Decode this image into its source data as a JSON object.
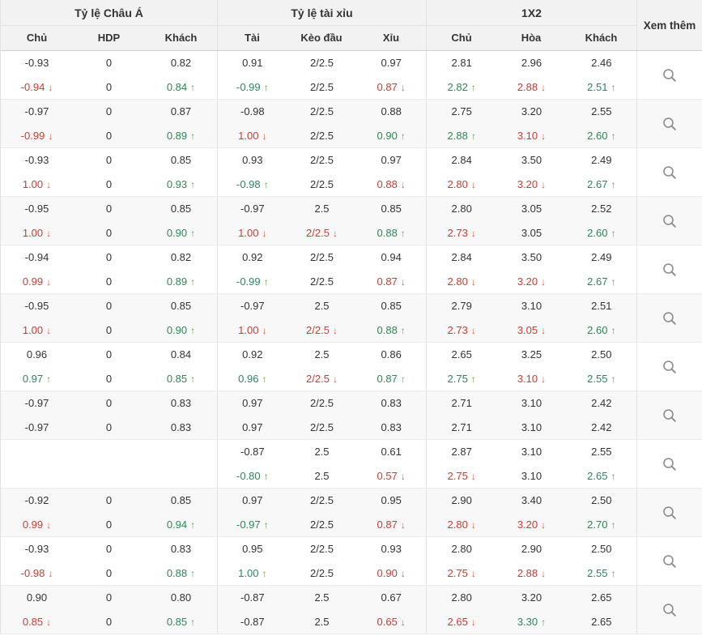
{
  "header": {
    "groups": [
      {
        "label": "Tỷ lệ Châu Á",
        "cols": [
          "Chủ",
          "HDP",
          "Khách"
        ]
      },
      {
        "label": "Tỷ lệ tài xỉu",
        "cols": [
          "Tài",
          "Kèo đầu",
          "Xỉu"
        ]
      },
      {
        "label": "1X2",
        "cols": [
          "Chủ",
          "Hòa",
          "Khách"
        ]
      }
    ],
    "more_label": "Xem thêm"
  },
  "icons": {
    "trend_up": "↑",
    "trend_down": "↓",
    "magnifier": "magnifier-icon"
  },
  "colors": {
    "up": "#2d8659",
    "down": "#cc3b33",
    "up_arrow": "#63a33c",
    "down_arrow": "#e2542c",
    "text": "#333333",
    "header_bg": "#f2f2f2",
    "shaded": "#f8f8f8",
    "border": "#e2e2e2",
    "row_border": "#ececec",
    "icon": "#8c8c8c"
  },
  "rows": [
    {
      "lines": [
        [
          {
            "v": "-0.93"
          },
          {
            "v": "0"
          },
          {
            "v": "0.82"
          },
          {
            "v": "0.91"
          },
          {
            "v": "2/2.5"
          },
          {
            "v": "0.97"
          },
          {
            "v": "2.81"
          },
          {
            "v": "2.96"
          },
          {
            "v": "2.46"
          }
        ],
        [
          {
            "v": "-0.94",
            "t": "down"
          },
          {
            "v": "0"
          },
          {
            "v": "0.84",
            "t": "up"
          },
          {
            "v": "-0.99",
            "t": "up"
          },
          {
            "v": "2/2.5"
          },
          {
            "v": "0.87",
            "t": "down"
          },
          {
            "v": "2.82",
            "t": "up"
          },
          {
            "v": "2.88",
            "t": "down"
          },
          {
            "v": "2.51",
            "t": "up"
          }
        ]
      ]
    },
    {
      "lines": [
        [
          {
            "v": "-0.97"
          },
          {
            "v": "0"
          },
          {
            "v": "0.87"
          },
          {
            "v": "-0.98"
          },
          {
            "v": "2/2.5"
          },
          {
            "v": "0.88"
          },
          {
            "v": "2.75"
          },
          {
            "v": "3.20"
          },
          {
            "v": "2.55"
          }
        ],
        [
          {
            "v": "-0.99",
            "t": "down"
          },
          {
            "v": "0"
          },
          {
            "v": "0.89",
            "t": "up"
          },
          {
            "v": "1.00",
            "t": "down"
          },
          {
            "v": "2/2.5"
          },
          {
            "v": "0.90",
            "t": "up"
          },
          {
            "v": "2.88",
            "t": "up"
          },
          {
            "v": "3.10",
            "t": "down"
          },
          {
            "v": "2.60",
            "t": "up"
          }
        ]
      ]
    },
    {
      "lines": [
        [
          {
            "v": "-0.93"
          },
          {
            "v": "0"
          },
          {
            "v": "0.85"
          },
          {
            "v": "0.93"
          },
          {
            "v": "2/2.5"
          },
          {
            "v": "0.97"
          },
          {
            "v": "2.84"
          },
          {
            "v": "3.50"
          },
          {
            "v": "2.49"
          }
        ],
        [
          {
            "v": "1.00",
            "t": "down"
          },
          {
            "v": "0"
          },
          {
            "v": "0.93",
            "t": "up"
          },
          {
            "v": "-0.98",
            "t": "up"
          },
          {
            "v": "2/2.5"
          },
          {
            "v": "0.88",
            "t": "down"
          },
          {
            "v": "2.80",
            "t": "down"
          },
          {
            "v": "3.20",
            "t": "down"
          },
          {
            "v": "2.67",
            "t": "up"
          }
        ]
      ]
    },
    {
      "lines": [
        [
          {
            "v": "-0.95"
          },
          {
            "v": "0"
          },
          {
            "v": "0.85"
          },
          {
            "v": "-0.97"
          },
          {
            "v": "2.5"
          },
          {
            "v": "0.85"
          },
          {
            "v": "2.80"
          },
          {
            "v": "3.05"
          },
          {
            "v": "2.52"
          }
        ],
        [
          {
            "v": "1.00",
            "t": "down"
          },
          {
            "v": "0"
          },
          {
            "v": "0.90",
            "t": "up"
          },
          {
            "v": "1.00",
            "t": "down"
          },
          {
            "v": "2/2.5",
            "t": "down"
          },
          {
            "v": "0.88",
            "t": "up"
          },
          {
            "v": "2.73",
            "t": "down"
          },
          {
            "v": "3.05"
          },
          {
            "v": "2.60",
            "t": "up"
          }
        ]
      ]
    },
    {
      "lines": [
        [
          {
            "v": "-0.94"
          },
          {
            "v": "0"
          },
          {
            "v": "0.82"
          },
          {
            "v": "0.92"
          },
          {
            "v": "2/2.5"
          },
          {
            "v": "0.94"
          },
          {
            "v": "2.84"
          },
          {
            "v": "3.50"
          },
          {
            "v": "2.49"
          }
        ],
        [
          {
            "v": "0.99",
            "t": "down"
          },
          {
            "v": "0"
          },
          {
            "v": "0.89",
            "t": "up"
          },
          {
            "v": "-0.99",
            "t": "up"
          },
          {
            "v": "2/2.5"
          },
          {
            "v": "0.87",
            "t": "down"
          },
          {
            "v": "2.80",
            "t": "down"
          },
          {
            "v": "3.20",
            "t": "down"
          },
          {
            "v": "2.67",
            "t": "up"
          }
        ]
      ]
    },
    {
      "lines": [
        [
          {
            "v": "-0.95"
          },
          {
            "v": "0"
          },
          {
            "v": "0.85"
          },
          {
            "v": "-0.97"
          },
          {
            "v": "2.5"
          },
          {
            "v": "0.85"
          },
          {
            "v": "2.79"
          },
          {
            "v": "3.10"
          },
          {
            "v": "2.51"
          }
        ],
        [
          {
            "v": "1.00",
            "t": "down"
          },
          {
            "v": "0"
          },
          {
            "v": "0.90",
            "t": "up"
          },
          {
            "v": "1.00",
            "t": "down"
          },
          {
            "v": "2/2.5",
            "t": "down"
          },
          {
            "v": "0.88",
            "t": "up"
          },
          {
            "v": "2.73",
            "t": "down"
          },
          {
            "v": "3.05",
            "t": "down"
          },
          {
            "v": "2.60",
            "t": "up"
          }
        ]
      ]
    },
    {
      "lines": [
        [
          {
            "v": "0.96"
          },
          {
            "v": "0"
          },
          {
            "v": "0.84"
          },
          {
            "v": "0.92"
          },
          {
            "v": "2.5"
          },
          {
            "v": "0.86"
          },
          {
            "v": "2.65"
          },
          {
            "v": "3.25"
          },
          {
            "v": "2.50"
          }
        ],
        [
          {
            "v": "0.97",
            "t": "up"
          },
          {
            "v": "0"
          },
          {
            "v": "0.85",
            "t": "up"
          },
          {
            "v": "0.96",
            "t": "up"
          },
          {
            "v": "2/2.5",
            "t": "down"
          },
          {
            "v": "0.87",
            "t": "up"
          },
          {
            "v": "2.75",
            "t": "up"
          },
          {
            "v": "3.10",
            "t": "down"
          },
          {
            "v": "2.55",
            "t": "up"
          }
        ]
      ]
    },
    {
      "lines": [
        [
          {
            "v": "-0.97"
          },
          {
            "v": "0"
          },
          {
            "v": "0.83"
          },
          {
            "v": "0.97"
          },
          {
            "v": "2/2.5"
          },
          {
            "v": "0.83"
          },
          {
            "v": "2.71"
          },
          {
            "v": "3.10"
          },
          {
            "v": "2.42"
          }
        ],
        [
          {
            "v": "-0.97"
          },
          {
            "v": "0"
          },
          {
            "v": "0.83"
          },
          {
            "v": "0.97"
          },
          {
            "v": "2/2.5"
          },
          {
            "v": "0.83"
          },
          {
            "v": "2.71"
          },
          {
            "v": "3.10"
          },
          {
            "v": "2.42"
          }
        ]
      ]
    },
    {
      "lines": [
        [
          {
            "v": ""
          },
          {
            "v": ""
          },
          {
            "v": ""
          },
          {
            "v": "-0.87"
          },
          {
            "v": "2.5"
          },
          {
            "v": "0.61"
          },
          {
            "v": "2.87"
          },
          {
            "v": "3.10"
          },
          {
            "v": "2.55"
          }
        ],
        [
          {
            "v": ""
          },
          {
            "v": ""
          },
          {
            "v": ""
          },
          {
            "v": "-0.80",
            "t": "up"
          },
          {
            "v": "2.5"
          },
          {
            "v": "0.57",
            "t": "down"
          },
          {
            "v": "2.75",
            "t": "down"
          },
          {
            "v": "3.10"
          },
          {
            "v": "2.65",
            "t": "up"
          }
        ]
      ]
    },
    {
      "lines": [
        [
          {
            "v": "-0.92"
          },
          {
            "v": "0"
          },
          {
            "v": "0.85"
          },
          {
            "v": "0.97"
          },
          {
            "v": "2/2.5"
          },
          {
            "v": "0.95"
          },
          {
            "v": "2.90"
          },
          {
            "v": "3.40"
          },
          {
            "v": "2.50"
          }
        ],
        [
          {
            "v": "0.99",
            "t": "down"
          },
          {
            "v": "0"
          },
          {
            "v": "0.94",
            "t": "up"
          },
          {
            "v": "-0.97",
            "t": "up"
          },
          {
            "v": "2/2.5"
          },
          {
            "v": "0.87",
            "t": "down"
          },
          {
            "v": "2.80",
            "t": "down"
          },
          {
            "v": "3.20",
            "t": "down"
          },
          {
            "v": "2.70",
            "t": "up"
          }
        ]
      ]
    },
    {
      "lines": [
        [
          {
            "v": "-0.93"
          },
          {
            "v": "0"
          },
          {
            "v": "0.83"
          },
          {
            "v": "0.95"
          },
          {
            "v": "2/2.5"
          },
          {
            "v": "0.93"
          },
          {
            "v": "2.80"
          },
          {
            "v": "2.90"
          },
          {
            "v": "2.50"
          }
        ],
        [
          {
            "v": "-0.98",
            "t": "down"
          },
          {
            "v": "0"
          },
          {
            "v": "0.88",
            "t": "up"
          },
          {
            "v": "1.00",
            "t": "up"
          },
          {
            "v": "2/2.5"
          },
          {
            "v": "0.90",
            "t": "down"
          },
          {
            "v": "2.75",
            "t": "down"
          },
          {
            "v": "2.88",
            "t": "down"
          },
          {
            "v": "2.55",
            "t": "up"
          }
        ]
      ]
    },
    {
      "lines": [
        [
          {
            "v": "0.90"
          },
          {
            "v": "0"
          },
          {
            "v": "0.80"
          },
          {
            "v": "-0.87"
          },
          {
            "v": "2.5"
          },
          {
            "v": "0.67"
          },
          {
            "v": "2.80"
          },
          {
            "v": "3.20"
          },
          {
            "v": "2.65"
          }
        ],
        [
          {
            "v": "0.85",
            "t": "down"
          },
          {
            "v": "0"
          },
          {
            "v": "0.85",
            "t": "up"
          },
          {
            "v": "-0.87"
          },
          {
            "v": "2.5"
          },
          {
            "v": "0.65",
            "t": "down"
          },
          {
            "v": "2.65",
            "t": "down"
          },
          {
            "v": "3.30",
            "t": "up"
          },
          {
            "v": "2.65"
          }
        ]
      ]
    }
  ]
}
